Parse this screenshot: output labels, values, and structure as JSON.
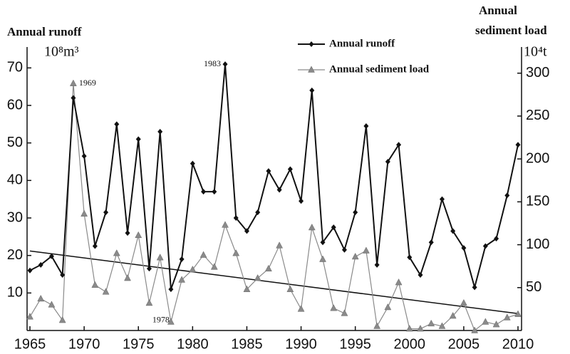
{
  "chart_data": {
    "type": "line",
    "y_title": "Annual runoff",
    "y_unit": "10⁸m³",
    "y2_title": [
      "Annual",
      "sediment load"
    ],
    "y2_unit": "10⁴t",
    "x": [
      1965,
      1966,
      1967,
      1968,
      1969,
      1970,
      1971,
      1972,
      1973,
      1974,
      1975,
      1976,
      1977,
      1978,
      1979,
      1980,
      1981,
      1982,
      1983,
      1984,
      1985,
      1986,
      1987,
      1988,
      1989,
      1990,
      1991,
      1992,
      1993,
      1994,
      1995,
      1996,
      1997,
      1998,
      1999,
      2000,
      2001,
      2002,
      2003,
      2004,
      2005,
      2006,
      2007,
      2008,
      2009,
      2010
    ],
    "series": [
      {
        "name": "Annual runoff",
        "color": "#111111",
        "marker": "diamond",
        "values": [
          16,
          17.5,
          19.8,
          14.8,
          62,
          46.5,
          22.5,
          31.5,
          55,
          26,
          51,
          16.5,
          53,
          11,
          19,
          44.5,
          37,
          37,
          71,
          30,
          26.5,
          31.5,
          42.5,
          37.5,
          43,
          34.5,
          64,
          23.5,
          27.5,
          21.5,
          31.5,
          54.5,
          17.5,
          45,
          49.5,
          19.5,
          14.8,
          23.5,
          35,
          26.5,
          22,
          11.5,
          22.5,
          24.5,
          36,
          49.5
        ]
      },
      {
        "name": "Annual sediment load",
        "color": "#8a8a8a",
        "marker": "triangle",
        "axis": "y2",
        "values": [
          16,
          37,
          30,
          12,
          288,
          136,
          53,
          45,
          90,
          61,
          111,
          32,
          85,
          10,
          59,
          71,
          88,
          74,
          123,
          90,
          48,
          61,
          72,
          99,
          48,
          25,
          120,
          83,
          26,
          20,
          86,
          93,
          5,
          27,
          56,
          2,
          2,
          8,
          5,
          17,
          32,
          0,
          10,
          7,
          15,
          19
        ]
      }
    ],
    "trend": {
      "color": "#111111",
      "x": [
        1965,
        2010
      ],
      "values": [
        21.2,
        4.5
      ]
    },
    "annotations": [
      "1969",
      "1983",
      "1978"
    ],
    "xlim": [
      1965,
      2010
    ],
    "xticks": [
      1965,
      1970,
      1975,
      1980,
      1985,
      1990,
      1995,
      2000,
      2005,
      2010
    ],
    "ylim": [
      0,
      75
    ],
    "yticks": [
      10,
      20,
      30,
      40,
      50,
      60,
      70
    ],
    "y2lim": [
      0,
      328
    ],
    "y2ticks": [
      50,
      100,
      150,
      200,
      250,
      300
    ],
    "legend": "top-center"
  }
}
